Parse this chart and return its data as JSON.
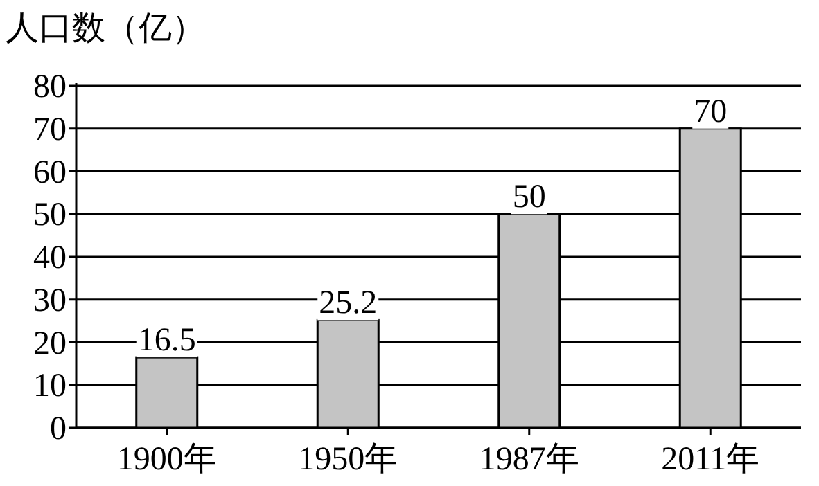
{
  "chart_data": {
    "type": "bar",
    "ylabel": "人口数（亿）",
    "categories": [
      "1900年",
      "1950年",
      "1987年",
      "2011年"
    ],
    "values": [
      16.5,
      25.2,
      50,
      70
    ],
    "color": "#c4c4c4",
    "ylim": [
      0,
      80
    ],
    "yticks": [
      0,
      10,
      20,
      30,
      40,
      50,
      60,
      70,
      80
    ],
    "grid": "y",
    "data_labels": true
  }
}
